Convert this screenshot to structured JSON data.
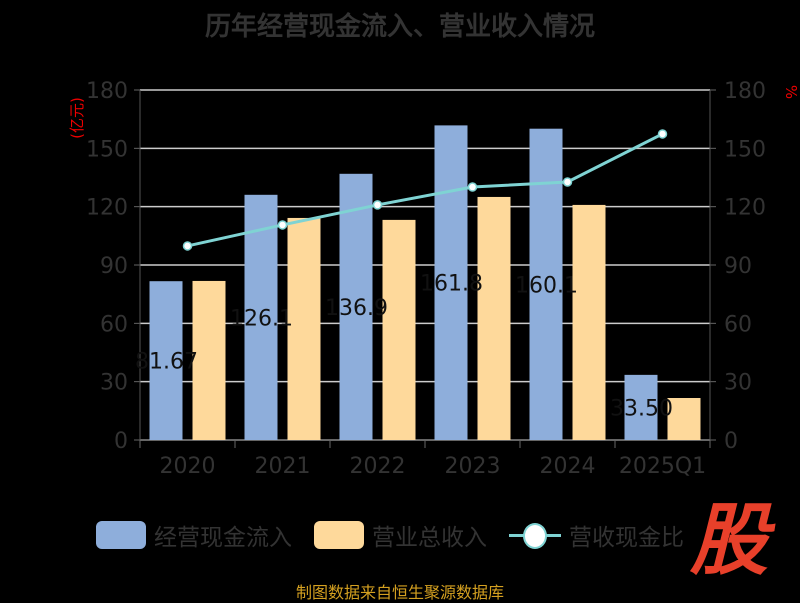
{
  "chart_data": {
    "type": "bar",
    "title": "历年经营现金流入、营业收入情况",
    "categories": [
      "2020",
      "2021",
      "2022",
      "2023",
      "2024",
      "2025Q1"
    ],
    "series": [
      {
        "name": "经营现金流入",
        "type": "bar",
        "axis": "left",
        "color": "#8eaedb",
        "values": [
          81.67,
          126.1,
          136.9,
          161.8,
          160.1,
          33.5
        ],
        "labels": [
          "81.67",
          "126.1",
          "136.9",
          "161.8",
          "160.1",
          "33.50"
        ]
      },
      {
        "name": "营业总收入",
        "type": "bar",
        "axis": "left",
        "color": "#fed99b",
        "values": [
          81.8,
          114.2,
          113.2,
          125.0,
          120.9,
          21.6
        ]
      },
      {
        "name": "营收现金比",
        "type": "line",
        "axis": "right",
        "color": "#7fd3d3",
        "values": [
          99.8,
          110.6,
          120.9,
          130.1,
          132.7,
          157.4
        ]
      }
    ],
    "ylabel": "(亿元)",
    "y2label": "%",
    "ylim": [
      0,
      180
    ],
    "y2lim": [
      0,
      180
    ],
    "yticks": [
      0,
      30,
      60,
      90,
      120,
      150,
      180
    ],
    "grid": true,
    "legend": "bottom"
  },
  "footer": "制图数据来自恒生聚源数据库",
  "logo_text": "股"
}
